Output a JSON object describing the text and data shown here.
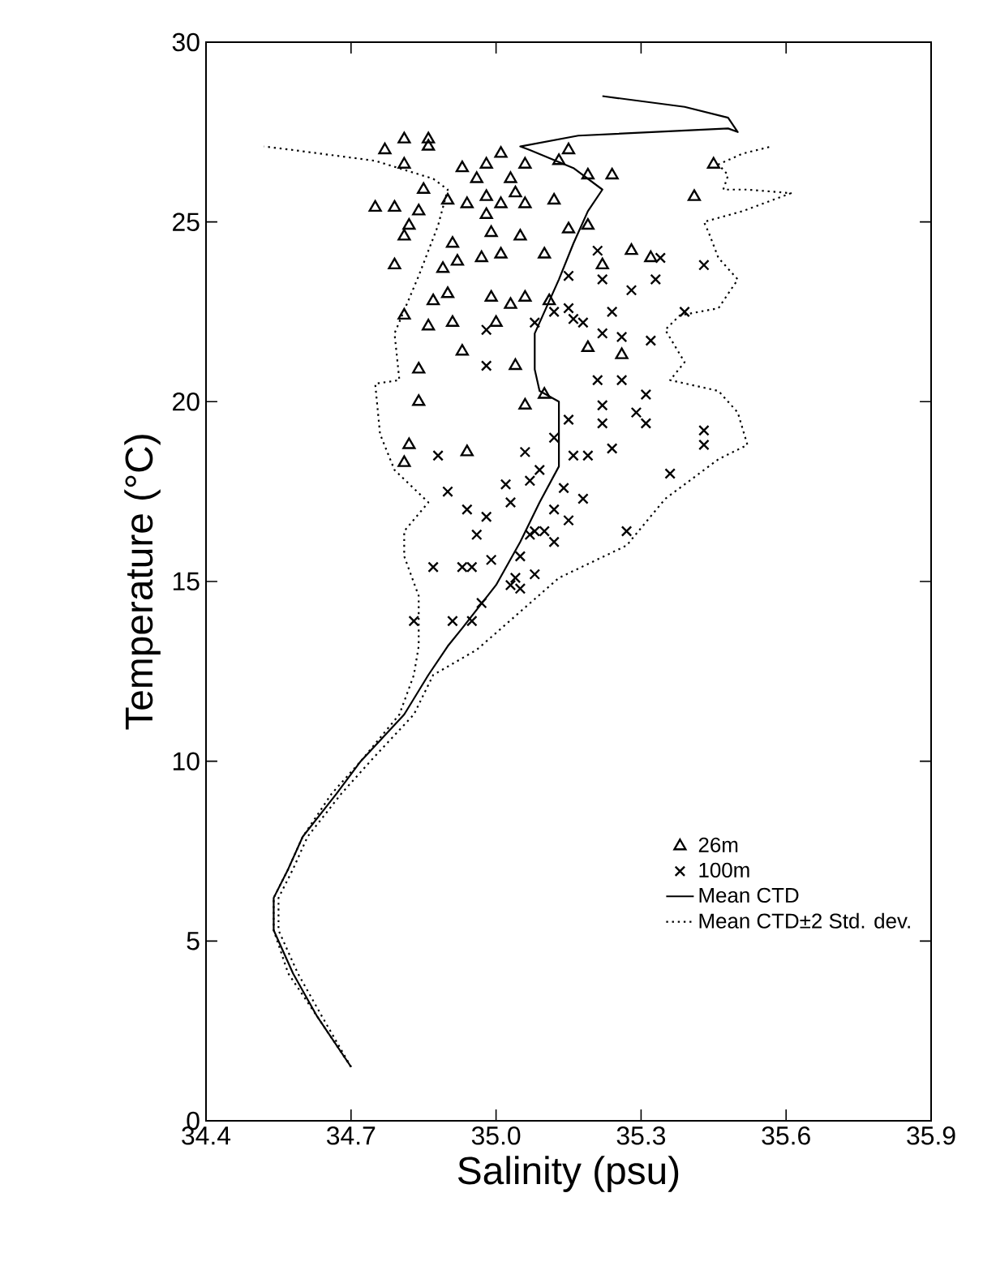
{
  "chart_data": {
    "type": "scatter",
    "xlabel": "Salinity (psu)",
    "ylabel": "Temperature (°C)",
    "xlim": [
      34.4,
      35.9
    ],
    "ylim": [
      0,
      30
    ],
    "xticks": [
      34.4,
      34.7,
      {
        "value": 35.0,
        "label": "35.0"
      },
      35.3,
      35.6,
      35.9
    ],
    "yticks": [
      0,
      5,
      10,
      15,
      20,
      25,
      30
    ],
    "legend": "bottom right",
    "series": [
      {
        "name": "26m",
        "marker": "triangle",
        "color": "#000000",
        "x": [
          34.77,
          34.81,
          34.86,
          34.86,
          34.81,
          34.75,
          34.79,
          34.85,
          34.9,
          34.94,
          34.93,
          34.98,
          35.01,
          35.06,
          35.03,
          34.96,
          34.98,
          35.01,
          35.04,
          35.06,
          35.12,
          35.15,
          35.13,
          35.19,
          35.24,
          34.84,
          34.82,
          34.81,
          34.79,
          34.91,
          34.89,
          34.92,
          34.98,
          35.05,
          34.99,
          35.01,
          34.97,
          34.87,
          34.9,
          34.81,
          34.86,
          34.91,
          34.99,
          35.06,
          35.03,
          35.11,
          35.0,
          34.93,
          34.84,
          35.19,
          35.26,
          35.28,
          35.15,
          35.19,
          35.1,
          35.22,
          35.45,
          35.41,
          35.32,
          34.84,
          34.82,
          34.81,
          34.94,
          35.06,
          35.1,
          35.04
        ],
        "values": [
          27.0,
          27.3,
          27.3,
          27.1,
          26.6,
          25.4,
          25.4,
          25.9,
          25.6,
          25.5,
          26.5,
          26.6,
          26.9,
          26.6,
          26.2,
          26.2,
          25.7,
          25.5,
          25.8,
          25.5,
          25.6,
          27.0,
          26.7,
          26.3,
          26.3,
          25.3,
          24.9,
          24.6,
          23.8,
          24.4,
          23.7,
          23.9,
          25.2,
          24.6,
          24.7,
          24.1,
          24.0,
          22.8,
          23.0,
          22.4,
          22.1,
          22.2,
          22.9,
          22.9,
          22.7,
          22.8,
          22.2,
          21.4,
          20.9,
          21.5,
          21.3,
          24.2,
          24.8,
          24.9,
          24.1,
          23.8,
          26.6,
          25.7,
          24.0,
          20.0,
          18.8,
          18.3,
          18.6,
          19.9,
          20.2,
          21.0
        ]
      },
      {
        "name": "100m",
        "marker": "cross",
        "color": "#000000",
        "x": [
          34.97,
          34.98,
          34.88,
          34.9,
          34.94,
          34.98,
          34.96,
          34.87,
          34.93,
          34.95,
          34.99,
          34.83,
          34.91,
          34.95,
          35.02,
          35.03,
          35.06,
          35.07,
          35.07,
          35.1,
          35.04,
          35.08,
          35.03,
          35.12,
          35.16,
          35.19,
          35.24,
          35.09,
          35.14,
          35.18,
          35.12,
          35.15,
          35.12,
          35.15,
          35.21,
          35.26,
          35.22,
          35.22,
          35.29,
          35.27,
          34.98,
          35.22,
          35.26,
          35.32,
          35.31,
          35.31,
          35.43,
          35.43,
          35.36,
          35.08,
          35.05,
          35.05,
          35.21,
          35.34,
          35.43,
          35.33,
          35.24,
          35.39,
          35.15,
          35.18,
          35.08,
          35.15,
          35.22,
          35.28,
          35.12,
          35.16
        ],
        "values": [
          14.4,
          21.0,
          18.5,
          17.5,
          17.0,
          16.8,
          16.3,
          15.4,
          15.4,
          15.4,
          15.6,
          13.9,
          13.9,
          13.9,
          17.7,
          17.2,
          18.6,
          17.8,
          16.3,
          16.4,
          15.1,
          15.2,
          14.9,
          19.0,
          18.5,
          18.5,
          18.7,
          18.1,
          17.6,
          17.3,
          17.0,
          16.7,
          16.1,
          19.5,
          20.6,
          20.6,
          19.9,
          19.4,
          19.7,
          16.4,
          22.0,
          21.9,
          21.8,
          21.7,
          20.2,
          19.4,
          19.2,
          18.8,
          18.0,
          16.4,
          15.7,
          14.8,
          24.2,
          24.0,
          23.8,
          23.4,
          22.5,
          22.5,
          22.6,
          22.2,
          22.2,
          23.5,
          23.4,
          23.1,
          22.5,
          22.3
        ]
      },
      {
        "name": "Mean CTD",
        "type": "line",
        "line_style": "solid",
        "marker": "none",
        "color": "#000000",
        "x": [
          34.7,
          34.63,
          34.58,
          34.54,
          34.54,
          34.57,
          34.6,
          34.67,
          34.72,
          34.81,
          34.86,
          34.9,
          34.93,
          35.0,
          35.05,
          35.09,
          35.13,
          35.13,
          35.09,
          35.08,
          35.08,
          35.13,
          35.16,
          35.19,
          35.22,
          35.16,
          35.07,
          35.05,
          35.17,
          35.48,
          35.5,
          35.48,
          35.39,
          35.22
        ],
        "values": [
          1.5,
          2.9,
          4.1,
          5.3,
          6.2,
          7.0,
          7.9,
          9.1,
          10.0,
          11.3,
          12.4,
          13.2,
          13.7,
          14.9,
          16.1,
          17.2,
          18.2,
          20.0,
          20.3,
          20.9,
          21.9,
          23.4,
          24.4,
          25.3,
          25.9,
          26.5,
          27.0,
          27.1,
          27.4,
          27.6,
          27.5,
          27.9,
          28.2,
          28.5
        ]
      },
      {
        "name": "Mean CTD±2 Std. dev.",
        "type": "line",
        "line_style": "dotted",
        "marker": "none",
        "color": "#000000",
        "x": [
          34.7,
          34.64,
          34.59,
          34.55,
          34.55,
          34.58,
          34.61,
          34.68,
          34.74,
          34.83,
          34.87,
          34.96,
          35.13,
          35.27,
          35.35,
          35.46,
          35.52,
          35.5,
          35.46,
          35.36,
          35.39,
          35.35,
          35.38,
          35.46,
          35.5,
          35.46,
          35.44,
          35.43,
          35.51,
          35.57,
          35.61,
          35.52,
          35.47,
          35.48,
          35.46,
          35.51,
          35.57
        ],
        "values": [
          1.5,
          2.9,
          4.1,
          5.3,
          6.2,
          7.0,
          7.9,
          9.1,
          10.0,
          11.3,
          12.4,
          13.1,
          15.1,
          16.0,
          17.3,
          18.4,
          18.8,
          19.7,
          20.3,
          20.6,
          21.1,
          22.0,
          22.4,
          22.6,
          23.4,
          24.0,
          24.7,
          25.0,
          25.3,
          25.6,
          25.8,
          25.9,
          25.9,
          26.3,
          26.6,
          26.9,
          27.1
        ]
      },
      {
        "type": "line",
        "line_style": "dotted",
        "marker": "none",
        "color": "#000000",
        "x": [
          34.7,
          34.63,
          34.57,
          34.54,
          34.54,
          34.57,
          34.6,
          34.66,
          34.72,
          34.8,
          34.83,
          34.84,
          34.84,
          34.81,
          34.81,
          34.86,
          34.79,
          34.76,
          34.75,
          34.8,
          34.79,
          34.84,
          34.88,
          34.9,
          34.87,
          34.75,
          34.58,
          34.52
        ],
        "values": [
          1.5,
          2.9,
          4.1,
          5.3,
          6.2,
          7.0,
          7.9,
          9.1,
          10.0,
          11.3,
          12.4,
          13.2,
          14.6,
          15.7,
          16.4,
          17.2,
          18.1,
          19.1,
          20.5,
          20.6,
          21.9,
          23.5,
          24.9,
          25.9,
          26.2,
          26.7,
          27.0,
          27.1
        ]
      }
    ]
  }
}
